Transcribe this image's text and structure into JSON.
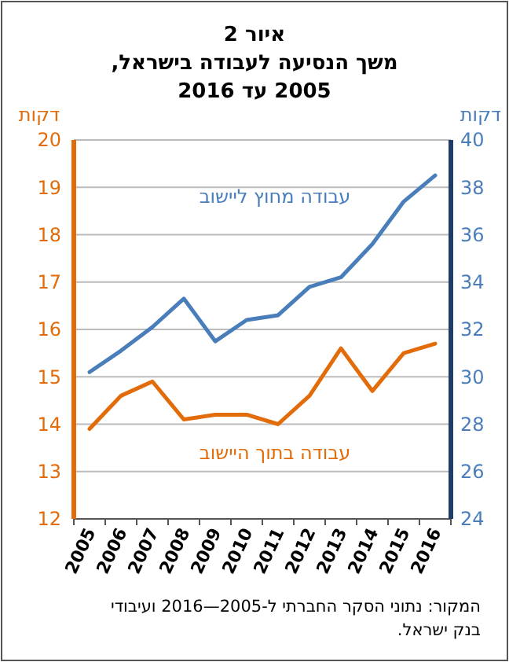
{
  "chart_data": {
    "type": "line",
    "title": "איור 2",
    "subtitle": "משך הנסיעה לעבודה בישראל,\n2005 עד 2016",
    "ylabel": "דקות",
    "y2label": "דקות",
    "categories": [
      "2005",
      "2006",
      "2007",
      "2008",
      "2009",
      "2010",
      "2011",
      "2012",
      "2013",
      "2014",
      "2015",
      "2016"
    ],
    "series": [
      {
        "name": "עבודה מחוץ ליישוב",
        "color": "#4a7ebb",
        "axis": "y2",
        "values": [
          30.2,
          31.1,
          32.1,
          33.3,
          31.5,
          32.4,
          32.6,
          33.8,
          34.2,
          35.6,
          37.4,
          38.5
        ]
      },
      {
        "name": "עבודה בתוך היישוב",
        "color": "#e36c0a",
        "values": [
          13.9,
          14.6,
          14.9,
          14.1,
          14.2,
          14.2,
          14.0,
          14.6,
          15.6,
          14.7,
          15.5,
          15.7
        ]
      }
    ],
    "ylim": [
      12,
      20
    ],
    "yticks": [
      12,
      13,
      14,
      15,
      16,
      17,
      18,
      19,
      20
    ],
    "y2lim": [
      24,
      40
    ],
    "y2ticks": [
      24,
      26,
      28,
      30,
      32,
      34,
      36,
      38,
      40
    ],
    "grid": "y",
    "annotations": [
      "המקור: נתוני הסקר החברתי ל-2005—2016 ועיבודי בנק ישראל."
    ]
  }
}
